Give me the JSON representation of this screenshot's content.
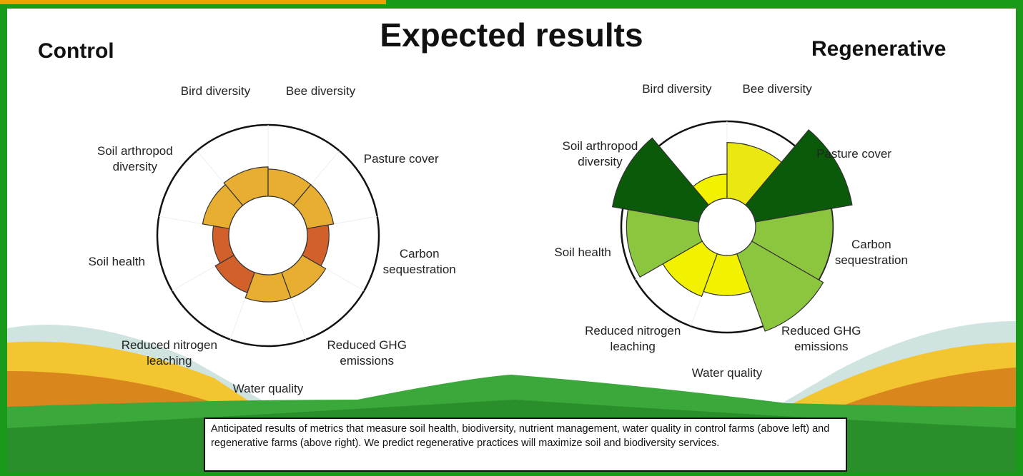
{
  "title": "Expected results",
  "chart_data": [
    {
      "type": "polar",
      "title": "Control",
      "categories": [
        "Bird diversity",
        "Bee diversity",
        "Pasture cover",
        "Carbon sequestration",
        "Reduced GHG emissions",
        "Water quality",
        "Reduced nitrogen leaching",
        "Soil health",
        "Soil arthropod diversity"
      ],
      "values": [
        0.62,
        0.6,
        0.6,
        0.55,
        0.6,
        0.6,
        0.55,
        0.5,
        0.6
      ],
      "colors": [
        "#e8ae32",
        "#e8ae32",
        "#e8ae32",
        "#d2602a",
        "#e8ae32",
        "#e8ae32",
        "#d2602a",
        "#d2602a",
        "#e8ae32"
      ]
    },
    {
      "type": "polar",
      "title": "Regenerative",
      "categories": [
        "Bird diversity",
        "Bee diversity",
        "Pasture cover",
        "Carbon sequestration",
        "Reduced GHG emissions",
        "Water quality",
        "Reduced nitrogen leaching",
        "Soil health",
        "Soil arthropod diversity"
      ],
      "values": [
        0.5,
        0.8,
        1.2,
        1.0,
        1.05,
        0.65,
        0.7,
        0.95,
        1.1
      ],
      "colors": [
        "#f2f200",
        "#eae810",
        "#0a5a0a",
        "#8cc63f",
        "#8cc63f",
        "#f2f200",
        "#f2f200",
        "#8cc63f",
        "#0a5a0a"
      ]
    }
  ],
  "caption": "Anticipated results of metrics that measure soil health, biodiversity, nutrient management, water quality in control farms (above left) and regenerative farms (above right). We predict regenerative practices will maximize soil and biodiversity services."
}
